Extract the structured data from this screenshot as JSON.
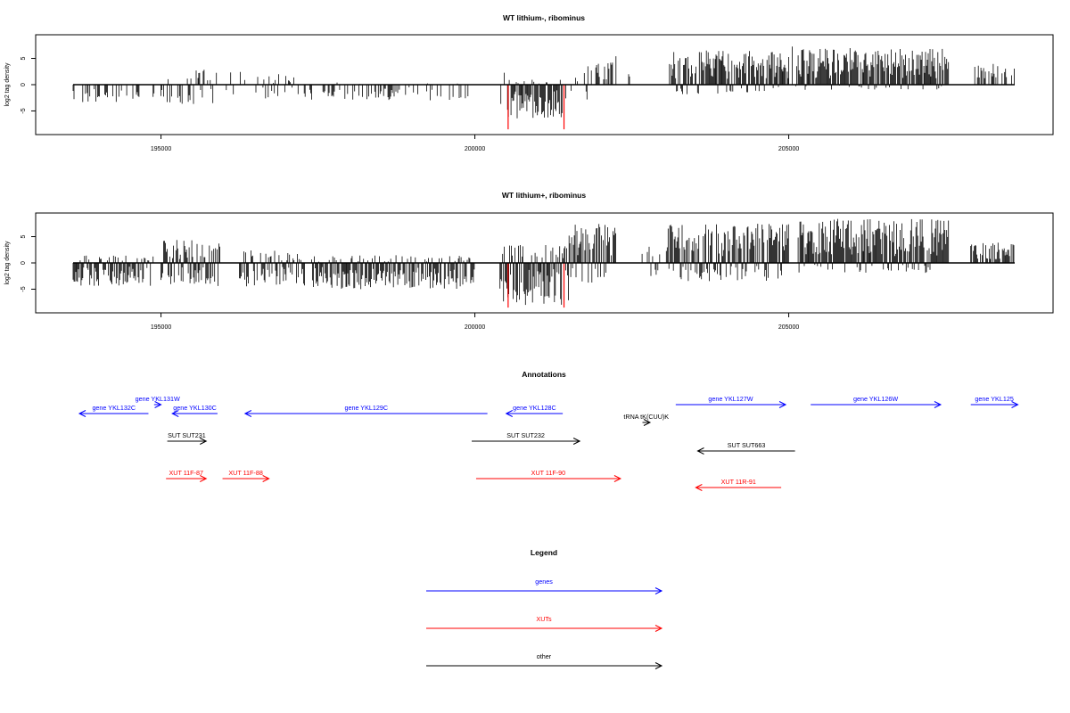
{
  "chart_data": [
    {
      "type": "bar",
      "title": "WT lithium-, ribominus",
      "ylabel": "log2 tag density",
      "xlim": [
        193600,
        208600
      ],
      "ylim": [
        -9.5,
        9.5
      ],
      "x_ticks": [
        "195000",
        "200000",
        "205000"
      ],
      "y_ticks": [
        "5",
        "0",
        "-5"
      ],
      "highlight_positions": [
        200530,
        201420
      ],
      "highlight_values": [
        -8.5,
        -8.5
      ],
      "highlight_color": "#ff0000",
      "bar_color": "#000000",
      "segments": [
        {
          "start": 193600,
          "end": 194300,
          "min": -3.5,
          "max": -0.5,
          "density": 0.35
        },
        {
          "start": 194300,
          "end": 194900,
          "min": -3.0,
          "max": -0.4,
          "density": 0.25
        },
        {
          "start": 195000,
          "end": 195900,
          "min": -4.0,
          "max": 3.0,
          "density": 0.5
        },
        {
          "start": 195900,
          "end": 196400,
          "min": -2.0,
          "max": 2.5,
          "density": 0.2
        },
        {
          "start": 196400,
          "end": 197300,
          "min": -3.5,
          "max": 2.0,
          "density": 0.3
        },
        {
          "start": 197300,
          "end": 199900,
          "min": -3.0,
          "max": 0.5,
          "density": 0.25
        },
        {
          "start": 200400,
          "end": 200520,
          "min": -4.0,
          "max": 3.0,
          "density": 0.6
        },
        {
          "start": 200520,
          "end": 201400,
          "min": -6.5,
          "max": 1.0,
          "density": 0.95
        },
        {
          "start": 201450,
          "end": 201800,
          "min": -3.5,
          "max": 2.5,
          "density": 0.5
        },
        {
          "start": 201800,
          "end": 202250,
          "min": -1.0,
          "max": 5.5,
          "density": 0.5
        },
        {
          "start": 202450,
          "end": 202700,
          "min": 0.0,
          "max": 3.0,
          "density": 0.15
        },
        {
          "start": 203100,
          "end": 205000,
          "min": -2.0,
          "max": 6.5,
          "density": 0.9
        },
        {
          "start": 205000,
          "end": 205150,
          "min": -1.0,
          "max": 7.5,
          "density": 0.6
        },
        {
          "start": 205150,
          "end": 207550,
          "min": -1.0,
          "max": 7.0,
          "density": 0.95
        },
        {
          "start": 207950,
          "end": 208600,
          "min": 0.0,
          "max": 4.0,
          "density": 0.5
        }
      ]
    },
    {
      "type": "bar",
      "title": "WT lithium+, ribominus",
      "ylabel": "log2 tag density",
      "xlim": [
        193600,
        208600
      ],
      "ylim": [
        -9.5,
        9.5
      ],
      "x_ticks": [
        "195000",
        "200000",
        "205000"
      ],
      "y_ticks": [
        "5",
        "0",
        "-5"
      ],
      "highlight_positions": [
        200530,
        201420
      ],
      "highlight_values": [
        -8.5,
        -8.5
      ],
      "highlight_color": "#ff0000",
      "bar_color": "#000000",
      "segments": [
        {
          "start": 193600,
          "end": 194900,
          "min": -4.5,
          "max": 1.5,
          "density": 0.9
        },
        {
          "start": 195000,
          "end": 195950,
          "min": -4.5,
          "max": 4.5,
          "density": 0.95
        },
        {
          "start": 196250,
          "end": 197300,
          "min": -4.5,
          "max": 2.5,
          "density": 0.8
        },
        {
          "start": 197400,
          "end": 200000,
          "min": -5.0,
          "max": 1.5,
          "density": 0.85
        },
        {
          "start": 200400,
          "end": 201500,
          "min": -8.0,
          "max": 3.5,
          "density": 1.0
        },
        {
          "start": 201500,
          "end": 202250,
          "min": -4.0,
          "max": 7.5,
          "density": 0.85
        },
        {
          "start": 202650,
          "end": 203000,
          "min": -2.5,
          "max": 3.5,
          "density": 0.55
        },
        {
          "start": 203050,
          "end": 205000,
          "min": -3.5,
          "max": 7.5,
          "density": 0.95
        },
        {
          "start": 205150,
          "end": 207550,
          "min": -2.0,
          "max": 8.5,
          "density": 1.0
        },
        {
          "start": 207900,
          "end": 208600,
          "min": 0.0,
          "max": 4.0,
          "density": 0.7
        }
      ]
    }
  ],
  "annotations": {
    "title": "Annotations",
    "items": [
      {
        "label": "gene YKL131W",
        "start": 194890,
        "end": 195000,
        "strand": "+",
        "row": 0,
        "color": "#0000ff"
      },
      {
        "label": "gene YKL132C",
        "start": 193700,
        "end": 194800,
        "strand": "-",
        "row": 1,
        "color": "#0000ff"
      },
      {
        "label": "gene YKL130C",
        "start": 195180,
        "end": 195900,
        "strand": "-",
        "row": 1,
        "color": "#0000ff"
      },
      {
        "label": "gene YKL129C",
        "start": 196340,
        "end": 200200,
        "strand": "-",
        "row": 1,
        "color": "#0000ff"
      },
      {
        "label": "gene YKL128C",
        "start": 200500,
        "end": 201400,
        "strand": "-",
        "row": 1,
        "color": "#0000ff"
      },
      {
        "label": "gene YKL127W",
        "start": 203200,
        "end": 204950,
        "strand": "+",
        "row": 0,
        "color": "#0000ff"
      },
      {
        "label": "gene YKL126W",
        "start": 205350,
        "end": 207420,
        "strand": "+",
        "row": 0,
        "color": "#0000ff"
      },
      {
        "label": "gene YKL125",
        "start": 207900,
        "end": 208650,
        "strand": "+",
        "row": 0,
        "color": "#0000ff"
      },
      {
        "label": "tRNA tK(CUU)K",
        "start": 202670,
        "end": 202790,
        "strand": "+",
        "row": 2,
        "color": "#000000"
      },
      {
        "label": "SUT SUT231",
        "start": 195100,
        "end": 195720,
        "strand": "+",
        "row": 3,
        "color": "#000000"
      },
      {
        "label": "SUT SUT232",
        "start": 199950,
        "end": 201670,
        "strand": "+",
        "row": 3,
        "color": "#000000"
      },
      {
        "label": "SUT SUT663",
        "start": 203550,
        "end": 205100,
        "strand": "-",
        "row": 4,
        "color": "#000000"
      },
      {
        "label": "XUT 11F-87",
        "start": 195080,
        "end": 195720,
        "strand": "+",
        "row": 5,
        "color": "#ff0000"
      },
      {
        "label": "XUT 11F-88",
        "start": 195980,
        "end": 196720,
        "strand": "+",
        "row": 5,
        "color": "#ff0000"
      },
      {
        "label": "XUT 11F-90",
        "start": 200020,
        "end": 202320,
        "strand": "+",
        "row": 5,
        "color": "#ff0000"
      },
      {
        "label": "XUT 11R-91",
        "start": 203520,
        "end": 204880,
        "strand": "-",
        "row": 6,
        "color": "#ff0000"
      }
    ]
  },
  "legend": {
    "title": "Legend",
    "entries": [
      {
        "label": "genes",
        "color": "#0000ff"
      },
      {
        "label": "XUTs",
        "color": "#ff0000"
      },
      {
        "label": "other",
        "color": "#000000"
      }
    ]
  }
}
